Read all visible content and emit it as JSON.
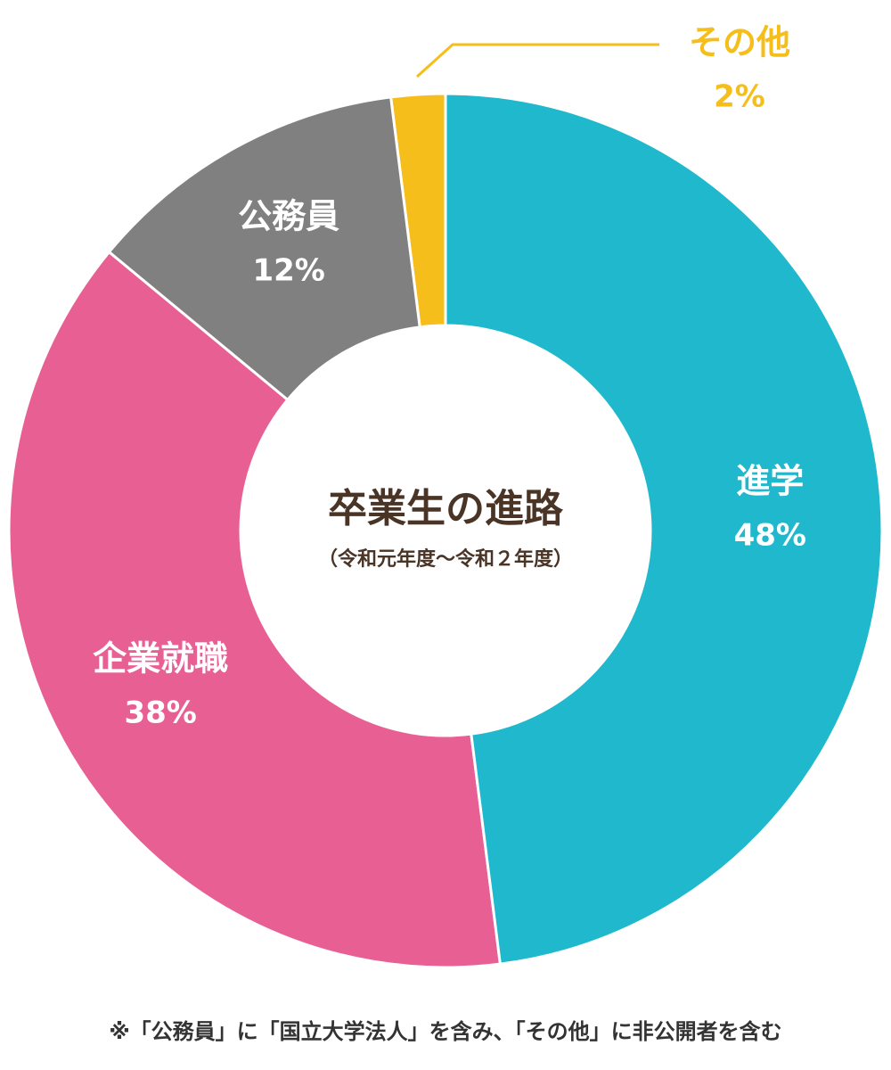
{
  "chart_data": {
    "type": "donut",
    "title": "卒業生の進路",
    "subtitle": "（令和元年度～令和２年度）",
    "categories": [
      "進学",
      "企業就職",
      "公務員",
      "その他"
    ],
    "values": [
      48,
      38,
      12,
      2
    ],
    "value_labels": [
      "48%",
      "38%",
      "12%",
      "2%"
    ],
    "colors": [
      "#1fb8cd",
      "#e86093",
      "#808080",
      "#f6be1a"
    ],
    "footnote": "※「公務員」に「国立大学法人」を含み、「その他」に非公開者を含む"
  }
}
